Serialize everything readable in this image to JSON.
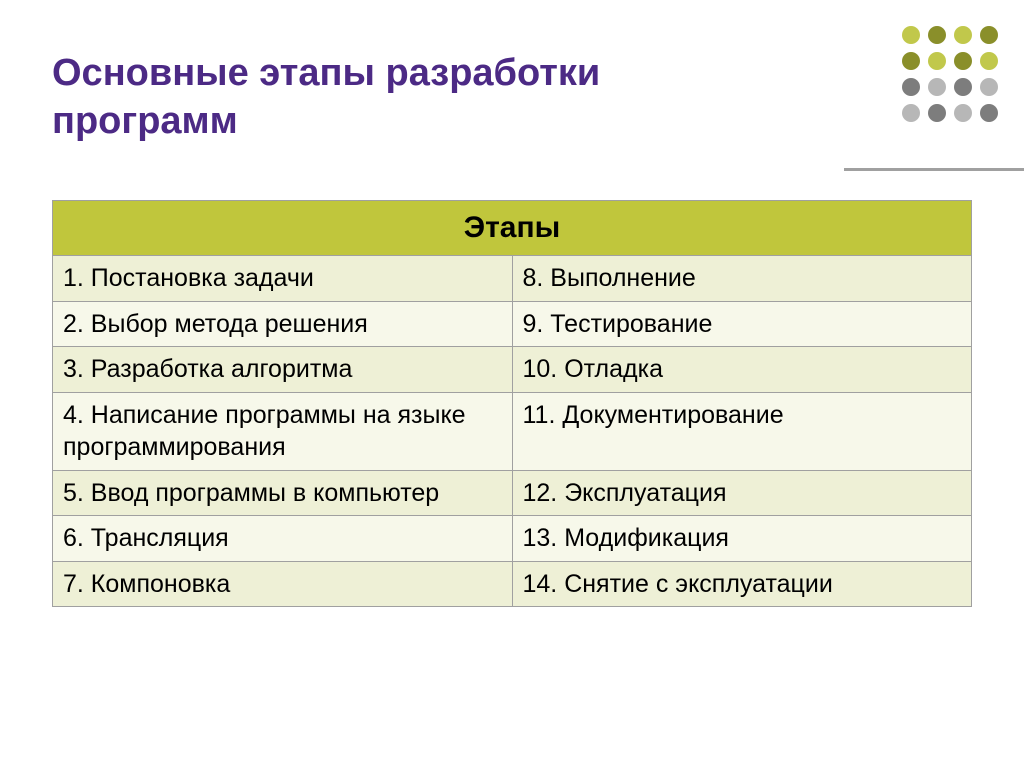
{
  "title": "Основные этапы разработки программ",
  "title_color": "#4c2a85",
  "decor_dots": {
    "colors": {
      "olive_dark": "#8a8f2a",
      "olive_light": "#c1c84b",
      "grey_dark": "#7d7d7d",
      "grey_light": "#b7b7b7"
    },
    "layout": [
      [
        "olive_light",
        "olive_dark",
        "olive_light",
        "olive_dark"
      ],
      [
        "olive_dark",
        "olive_light",
        "olive_dark",
        "olive_light"
      ],
      [
        "grey_dark",
        "grey_light",
        "grey_dark",
        "grey_light"
      ],
      [
        "grey_light",
        "grey_dark",
        "grey_light",
        "grey_dark"
      ]
    ]
  },
  "table": {
    "type": "table",
    "header": "Этапы",
    "header_bg": "#c0c63c",
    "row_color_a": "#eef0d6",
    "row_color_b": "#f7f8ea",
    "border_color": "#a0a0a0",
    "font_size_body": 25,
    "font_size_header": 30,
    "rows": [
      {
        "left": "1. Постановка задачи",
        "right": "8. Выполнение"
      },
      {
        "left": "2. Выбор метода решения",
        "right": "9. Тестирование"
      },
      {
        "left": "3. Разработка алгоритма",
        "right": "10. Отладка"
      },
      {
        "left": "4. Написание программы на языке программирования",
        "right": "11. Документирование"
      },
      {
        "left": "5. Ввод программы в компьютер",
        "right": "12. Эксплуатация"
      },
      {
        "left": "6. Трансляция",
        "right": "13. Модификация"
      },
      {
        "left": "7. Компоновка",
        "right": "14. Снятие с эксплуатации"
      }
    ]
  }
}
